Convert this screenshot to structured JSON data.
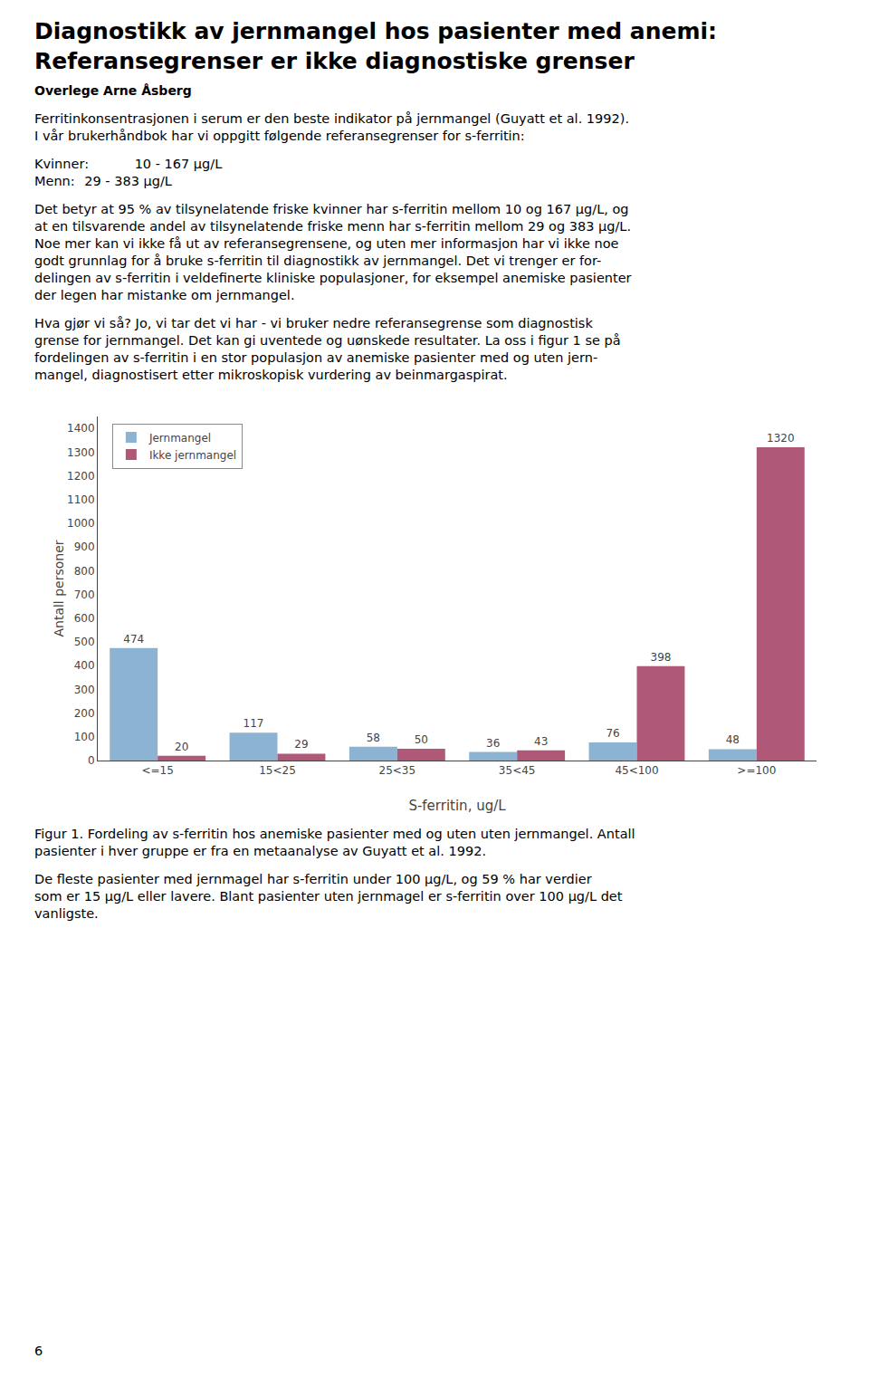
{
  "chart_data": {
    "type": "bar",
    "title": "Diagnostikk av jernmangel hos pasienter med anemi:\nReferansegrenser er ikke diagnostiske grenser",
    "subtitle": "Overlege Arne Åsberg",
    "annotations": [
      "Ferritinkonsentrasjonen i serum er den beste indikator på jernmangel (Guyatt et al. 1992).\nI vår brukerhåndbok har vi oppgitt følgende referansegrenser for s-ferritin:",
      "Kvinner:\t10 - 167 µg/L\nMenn:\t29 - 383 µg/L",
      "Det betyr at 95 % av tilsynelatende friske kvinner har s-ferritin mellom 10 og 167 µg/L, og\nat en tilsvarende andel av tilsynelatende friske menn har s-ferritin mellom 29 og 383 µg/L.\nNoe mer kan vi ikke få ut av referansegrensene, og uten mer informasjon har vi ikke noe\ngodt grunnlag for å bruke s-ferritin til diagnostikk av jernmangel. Det vi trenger er for-\ndelingen av s-ferritin i veldefinerte kliniske populasjoner, for eksempel anemiske pasienter\nder legen har mistanke om jernmangel.",
      "Hva gjør vi så? Jo, vi tar det vi har - vi bruker nedre referansegrense som diagnostisk\ngrense for jernmangel. Det kan gi uventede og uønskede resultater. La oss i figur 1 se på\nfordelingen av s-ferritin i en stor populasjon av anemiske pasienter med og uten jern-\nmangel, diagnostisert etter mikroskopisk vurdering av beinmargaspirat.",
      "Figur 1. Fordeling av s-ferritin hos anemiske pasienter med og uten uten jernmangel. Antall\npasienter i hver gruppe er fra en metaanalyse av Guyatt et al. 1992.",
      "De fleste pasienter med jernmagel har s-ferritin under 100 µg/L, og 59 % har verdier\nsom er 15 µg/L eller lavere. Blant pasienter uten jernmagel er s-ferritin over 100 µg/L det\nvanligste.",
      "6"
    ],
    "categories": [
      "<=15",
      "15<25",
      "25<35",
      "35<45",
      "45<100",
      ">=100"
    ],
    "series": [
      {
        "name": "Jernmangel",
        "color": "#8cb4d2",
        "values": [
          474,
          117,
          58,
          36,
          76,
          48
        ]
      },
      {
        "name": "Ikke jernmangel",
        "color": "#b05878",
        "values": [
          20,
          29,
          50,
          43,
          398,
          1320
        ]
      }
    ],
    "xlabel": "S-ferritin, ug/L",
    "ylabel": "Antall personer",
    "ylim": [
      0,
      1450
    ],
    "yticks": [
      0,
      100,
      200,
      300,
      400,
      500,
      600,
      700,
      800,
      900,
      1000,
      1100,
      1200,
      1300,
      1400
    ],
    "grid": false,
    "legend": "upper left",
    "data_labels": true
  }
}
